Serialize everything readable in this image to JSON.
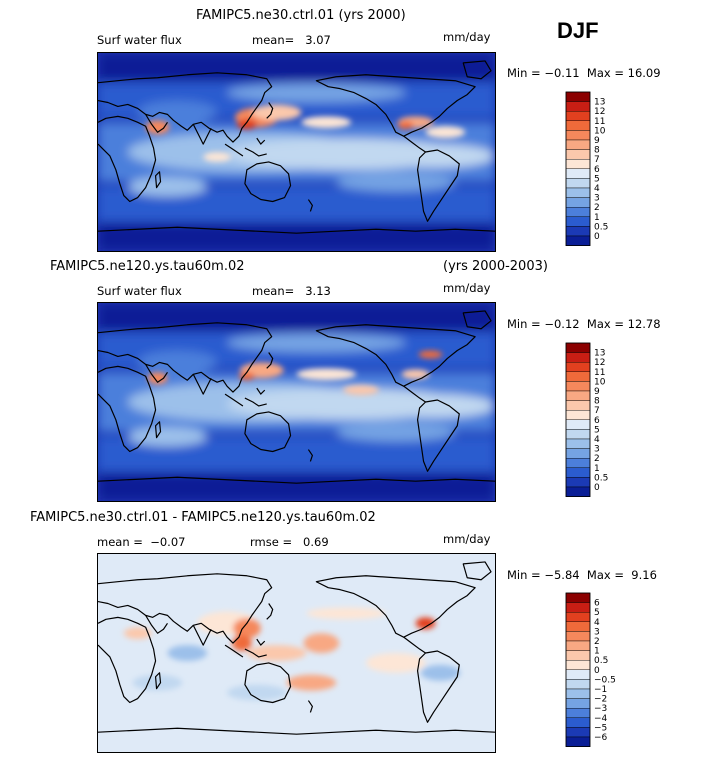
{
  "season": "DJF",
  "panels": [
    {
      "title": "FAMIPC5.ne30.ctrl.01 (yrs 2000)",
      "title_right": "",
      "left_label": "Surf water flux",
      "stat1": "mean=   3.07",
      "stat2": "",
      "units": "mm/day",
      "min_max": "Min = −0.11  Max = 16.09"
    },
    {
      "title": "FAMIPC5.ne120.ys.tau60m.02",
      "title_right": "(yrs 2000-2003)",
      "left_label": "Surf water flux",
      "stat1": "mean=   3.13",
      "stat2": "",
      "units": "mm/day",
      "min_max": "Min = −0.12  Max = 12.78"
    },
    {
      "title": "FAMIPC5.ne30.ctrl.01 - FAMIPC5.ne120.ys.tau60m.02",
      "title_right": "",
      "left_label": "mean =  −0.07",
      "stat1": "rmse =   0.69",
      "stat2": "",
      "units": "mm/day",
      "min_max": "Min = −5.84  Max =  9.16"
    }
  ],
  "chart_data": [
    {
      "type": "heatmap",
      "title": "FAMIPC5.ne30.ctrl.01 (yrs 2000)",
      "variable": "Surf water flux",
      "units": "mm/day",
      "mean": 3.07,
      "min": -0.11,
      "max": 16.09,
      "levels": [
        "13",
        "12",
        "11",
        "10",
        "9",
        "8",
        "7",
        "6",
        "5",
        "4",
        "3",
        "2",
        "1",
        "0.5",
        "0"
      ],
      "colors": [
        "#8b0000",
        "#c81e14",
        "#e2401f",
        "#ef6a3a",
        "#f5885c",
        "#f8a883",
        "#fbc8ac",
        "#fde6d6",
        "#dfeaf7",
        "#c1d8f0",
        "#9cc0ea",
        "#75a3e3",
        "#4c7fdb",
        "#2b5ccf",
        "#1b3ab5",
        "#0a1e96"
      ]
    },
    {
      "type": "heatmap",
      "title": "FAMIPC5.ne120.ys.tau60m.02 (yrs 2000-2003)",
      "variable": "Surf water flux",
      "units": "mm/day",
      "mean": 3.13,
      "min": -0.12,
      "max": 12.78,
      "levels": [
        "13",
        "12",
        "11",
        "10",
        "9",
        "8",
        "7",
        "6",
        "5",
        "4",
        "3",
        "2",
        "1",
        "0.5",
        "0"
      ],
      "colors": [
        "#8b0000",
        "#c81e14",
        "#e2401f",
        "#ef6a3a",
        "#f5885c",
        "#f8a883",
        "#fbc8ac",
        "#fde6d6",
        "#dfeaf7",
        "#c1d8f0",
        "#9cc0ea",
        "#75a3e3",
        "#4c7fdb",
        "#2b5ccf",
        "#1b3ab5",
        "#0a1e96"
      ]
    },
    {
      "type": "heatmap",
      "title": "FAMIPC5.ne30.ctrl.01 - FAMIPC5.ne120.ys.tau60m.02",
      "units": "mm/day",
      "mean": -0.07,
      "rmse": 0.69,
      "min": -5.84,
      "max": 9.16,
      "levels": [
        "6",
        "5",
        "4",
        "3",
        "2",
        "1",
        "0.5",
        "0",
        "−0.5",
        "−1",
        "−2",
        "−3",
        "−4",
        "−5",
        "−6"
      ],
      "colors": [
        "#8b0000",
        "#c81e14",
        "#e2401f",
        "#ef6a3a",
        "#f5885c",
        "#f8a883",
        "#fbc8ac",
        "#fde6d6",
        "#dfeaf7",
        "#c1d8f0",
        "#9cc0ea",
        "#75a3e3",
        "#4c7fdb",
        "#2b5ccf",
        "#1b3ab5",
        "#0a1e96"
      ]
    }
  ]
}
